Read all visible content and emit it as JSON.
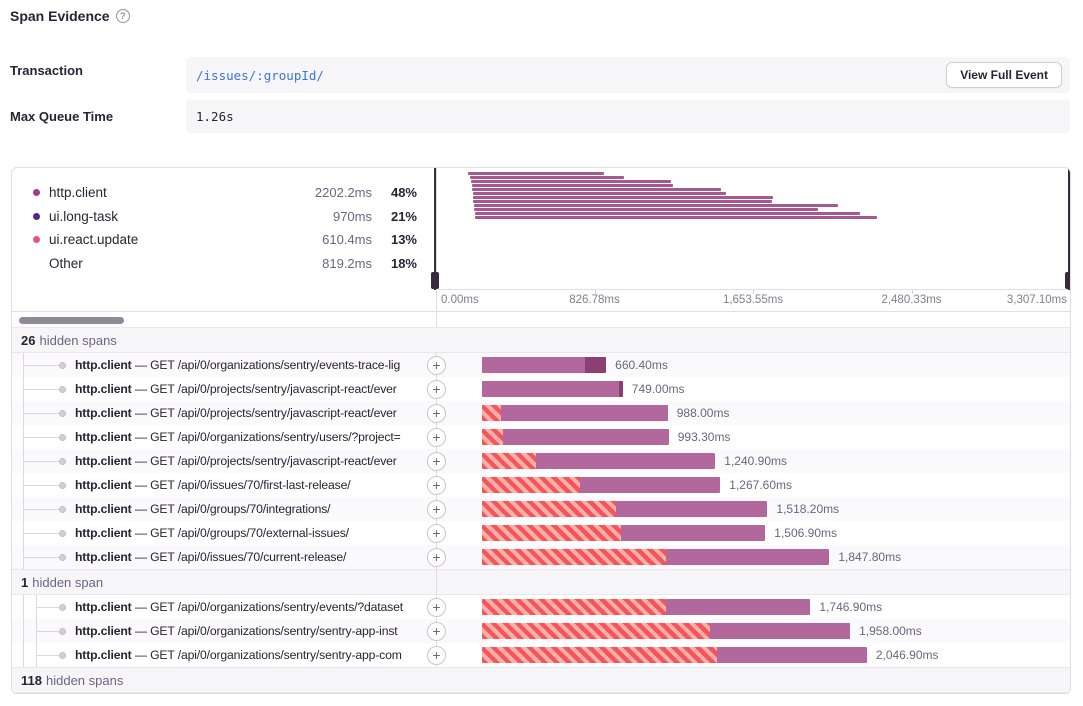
{
  "title": {
    "text": "Span Evidence",
    "help": "?"
  },
  "details": {
    "transaction": {
      "label": "Transaction",
      "value": "/issues/:groupId/",
      "button": "View Full Event"
    },
    "max_queue_time": {
      "label": "Max Queue Time",
      "value": "1.26s"
    }
  },
  "legend": {
    "items": [
      {
        "label": "http.client",
        "value": "2202.2ms",
        "pct": "48%",
        "color": "#A13C88"
      },
      {
        "label": "ui.long-task",
        "value": "970ms",
        "pct": "21%",
        "color": "#53298F"
      },
      {
        "label": "ui.react.update",
        "value": "610.4ms",
        "pct": "13%",
        "color": "#EB5474"
      },
      {
        "label": "Other",
        "value": "819.2ms",
        "pct": "18%",
        "color": ""
      }
    ]
  },
  "chart_data": {
    "type": "gantt-minimap",
    "unit": "ms",
    "x_range": [
      0,
      3307.1
    ],
    "axis_ticks": [
      "0.00ms",
      "826.78ms",
      "1,653.55ms",
      "2,480.33ms",
      "3,307.10ms"
    ],
    "bar_color": "#A85890",
    "bars": [
      {
        "start_ms": 162,
        "end_ms": 871
      },
      {
        "start_ms": 172,
        "end_ms": 975
      },
      {
        "start_ms": 176,
        "end_ms": 1220
      },
      {
        "start_ms": 181,
        "end_ms": 1231
      },
      {
        "start_ms": 181,
        "end_ms": 1481
      },
      {
        "start_ms": 186,
        "end_ms": 1507
      },
      {
        "start_ms": 186,
        "end_ms": 1752
      },
      {
        "start_ms": 186,
        "end_ms": 1747
      },
      {
        "start_ms": 191,
        "end_ms": 2092
      },
      {
        "start_ms": 191,
        "end_ms": 1986
      },
      {
        "start_ms": 197,
        "end_ms": 2206
      },
      {
        "start_ms": 197,
        "end_ms": 2295
      }
    ]
  },
  "list": {
    "separator": "—",
    "expand_glyph": "+",
    "groups": [
      {
        "hidden": {
          "count": "26",
          "label": "hidden spans"
        },
        "spans": [
          {
            "op": "http.client",
            "desc": "GET /api/0/organizations/sentry/events-trace-lig",
            "duration": "660.40ms",
            "duration_ms": 660.4,
            "hatch_pct": 0,
            "dark_pct": 17
          },
          {
            "op": "http.client",
            "desc": "GET /api/0/projects/sentry/javascript-react/ever",
            "duration": "749.00ms",
            "duration_ms": 749.0,
            "hatch_pct": 0,
            "dark_pct": 3
          },
          {
            "op": "http.client",
            "desc": "GET /api/0/projects/sentry/javascript-react/ever",
            "duration": "988.00ms",
            "duration_ms": 988.0,
            "hatch_pct": 10,
            "dark_pct": 0
          },
          {
            "op": "http.client",
            "desc": "GET /api/0/organizations/sentry/users/?project=",
            "duration": "993.30ms",
            "duration_ms": 993.3,
            "hatch_pct": 11,
            "dark_pct": 0
          },
          {
            "op": "http.client",
            "desc": "GET /api/0/projects/sentry/javascript-react/ever",
            "duration": "1,240.90ms",
            "duration_ms": 1240.9,
            "hatch_pct": 23,
            "dark_pct": 0
          },
          {
            "op": "http.client",
            "desc": "GET /api/0/issues/70/first-last-release/",
            "duration": "1,267.60ms",
            "duration_ms": 1267.6,
            "hatch_pct": 41,
            "dark_pct": 0
          },
          {
            "op": "http.client",
            "desc": "GET /api/0/groups/70/integrations/",
            "duration": "1,518.20ms",
            "duration_ms": 1518.2,
            "hatch_pct": 47,
            "dark_pct": 0
          },
          {
            "op": "http.client",
            "desc": "GET /api/0/groups/70/external-issues/",
            "duration": "1,506.90ms",
            "duration_ms": 1506.9,
            "hatch_pct": 49,
            "dark_pct": 0
          },
          {
            "op": "http.client",
            "desc": "GET /api/0/issues/70/current-release/",
            "duration": "1,847.80ms",
            "duration_ms": 1847.8,
            "hatch_pct": 53,
            "dark_pct": 0
          }
        ]
      },
      {
        "hidden": {
          "count": "1",
          "label": "hidden span"
        },
        "spans": [
          {
            "op": "http.client",
            "desc": "GET /api/0/organizations/sentry/events/?dataset",
            "duration": "1,746.90ms",
            "duration_ms": 1746.9,
            "hatch_pct": 56,
            "dark_pct": 0
          },
          {
            "op": "http.client",
            "desc": "GET /api/0/organizations/sentry/sentry-app-inst",
            "duration": "1,958.00ms",
            "duration_ms": 1958.0,
            "hatch_pct": 62,
            "dark_pct": 0
          },
          {
            "op": "http.client",
            "desc": "GET /api/0/organizations/sentry/sentry-app-com",
            "duration": "2,046.90ms",
            "duration_ms": 2046.9,
            "hatch_pct": 61,
            "dark_pct": 0
          }
        ]
      }
    ],
    "footer": {
      "count": "118",
      "label": "hidden spans"
    }
  },
  "colors": {
    "bar_fill": "#B2689C",
    "bar_dark": "#8C3F73",
    "hatch_red": "#F4555C",
    "hatch_light": "#FCAFA6",
    "minimap_bar": "#A85890",
    "handle": "#342C3D",
    "link": "#3C74DB"
  }
}
